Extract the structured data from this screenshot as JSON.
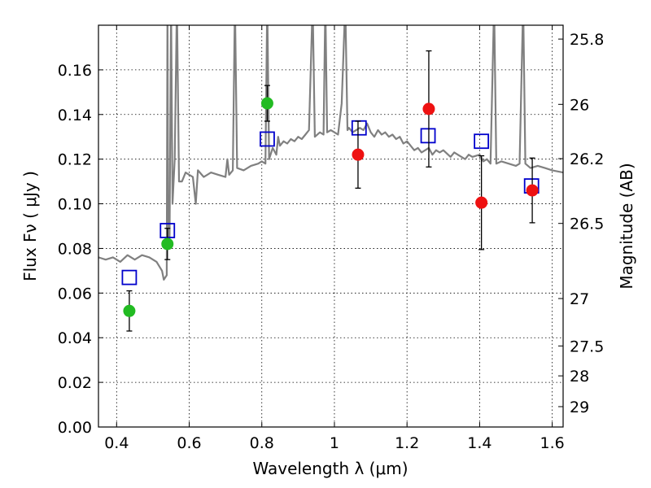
{
  "chart_data": {
    "type": "scatter",
    "xlabel": "Wavelength  λ (μm)",
    "ylabel_left": "Flux  Fν  ( μJy )",
    "ylabel_right": "Magnitude (AB)",
    "xlim": [
      0.35,
      1.63
    ],
    "ylim": [
      0.0,
      0.18
    ],
    "grid": true,
    "x_ticks": [
      {
        "value": 0.4,
        "label": "0.4"
      },
      {
        "value": 0.6,
        "label": "0.6"
      },
      {
        "value": 0.8,
        "label": "0.8"
      },
      {
        "value": 1.0,
        "label": "1"
      },
      {
        "value": 1.2,
        "label": "1.2"
      },
      {
        "value": 1.4,
        "label": "1.4"
      },
      {
        "value": 1.6,
        "label": "1.6"
      }
    ],
    "y_ticks": [
      {
        "value": 0.0,
        "label": "0.00"
      },
      {
        "value": 0.02,
        "label": "0.02"
      },
      {
        "value": 0.04,
        "label": "0.04"
      },
      {
        "value": 0.06,
        "label": "0.06"
      },
      {
        "value": 0.08,
        "label": "0.08"
      },
      {
        "value": 0.1,
        "label": "0.10"
      },
      {
        "value": 0.12,
        "label": "0.12"
      },
      {
        "value": 0.14,
        "label": "0.14"
      },
      {
        "value": 0.16,
        "label": "0.16"
      }
    ],
    "right_ticks": [
      {
        "mag": 25.8,
        "label": "25.8"
      },
      {
        "mag": 26.0,
        "label": "26"
      },
      {
        "mag": 26.2,
        "label": "26.2"
      },
      {
        "mag": 26.5,
        "label": "26.5"
      },
      {
        "mag": 27.0,
        "label": "27"
      },
      {
        "mag": 27.5,
        "label": "27.5"
      },
      {
        "mag": 28.0,
        "label": "28"
      },
      {
        "mag": 29.0,
        "label": "29"
      }
    ],
    "series": [
      {
        "kind": "observed-optical",
        "color": "#22bb22",
        "marker": "circle",
        "points": [
          {
            "x": 0.435,
            "y": 0.052,
            "err": 0.009
          },
          {
            "x": 0.54,
            "y": 0.082,
            "err": 0.007
          },
          {
            "x": 0.815,
            "y": 0.145,
            "err": 0.008
          }
        ]
      },
      {
        "kind": "observed-nir",
        "color": "#ee1111",
        "marker": "circle",
        "points": [
          {
            "x": 1.065,
            "y": 0.122,
            "err": 0.015
          },
          {
            "x": 1.26,
            "y": 0.1425,
            "err": 0.026
          },
          {
            "x": 1.405,
            "y": 0.1005,
            "err": 0.021
          },
          {
            "x": 1.545,
            "y": 0.106,
            "err": 0.0145
          }
        ]
      },
      {
        "kind": "model-bandpass",
        "color": "#0000cc",
        "marker": "square-open",
        "points": [
          {
            "x": 0.435,
            "y": 0.067
          },
          {
            "x": 0.54,
            "y": 0.088
          },
          {
            "x": 0.815,
            "y": 0.129
          },
          {
            "x": 1.068,
            "y": 0.134
          },
          {
            "x": 1.258,
            "y": 0.1305
          },
          {
            "x": 1.405,
            "y": 0.128
          },
          {
            "x": 1.543,
            "y": 0.108
          }
        ]
      },
      {
        "kind": "model-spectrum",
        "color": "#808080",
        "marker": "line",
        "points": [
          [
            0.35,
            0.076
          ],
          [
            0.37,
            0.075
          ],
          [
            0.39,
            0.076
          ],
          [
            0.41,
            0.074
          ],
          [
            0.43,
            0.077
          ],
          [
            0.45,
            0.075
          ],
          [
            0.47,
            0.077
          ],
          [
            0.49,
            0.076
          ],
          [
            0.51,
            0.074
          ],
          [
            0.525,
            0.07
          ],
          [
            0.53,
            0.066
          ],
          [
            0.538,
            0.068
          ],
          [
            0.54,
            0.19
          ],
          [
            0.542,
            0.08
          ],
          [
            0.546,
            0.085
          ],
          [
            0.55,
            0.19
          ],
          [
            0.554,
            0.1
          ],
          [
            0.56,
            0.12
          ],
          [
            0.566,
            0.19
          ],
          [
            0.572,
            0.11
          ],
          [
            0.58,
            0.11
          ],
          [
            0.59,
            0.114
          ],
          [
            0.6,
            0.113
          ],
          [
            0.61,
            0.112
          ],
          [
            0.618,
            0.1
          ],
          [
            0.624,
            0.115
          ],
          [
            0.64,
            0.112
          ],
          [
            0.66,
            0.114
          ],
          [
            0.68,
            0.113
          ],
          [
            0.7,
            0.112
          ],
          [
            0.705,
            0.12
          ],
          [
            0.71,
            0.113
          ],
          [
            0.72,
            0.115
          ],
          [
            0.726,
            0.19
          ],
          [
            0.732,
            0.116
          ],
          [
            0.75,
            0.115
          ],
          [
            0.77,
            0.117
          ],
          [
            0.79,
            0.118
          ],
          [
            0.8,
            0.119
          ],
          [
            0.81,
            0.118
          ],
          [
            0.815,
            0.19
          ],
          [
            0.82,
            0.12
          ],
          [
            0.83,
            0.125
          ],
          [
            0.84,
            0.122
          ],
          [
            0.845,
            0.13
          ],
          [
            0.85,
            0.126
          ],
          [
            0.86,
            0.128
          ],
          [
            0.87,
            0.127
          ],
          [
            0.88,
            0.129
          ],
          [
            0.89,
            0.128
          ],
          [
            0.9,
            0.13
          ],
          [
            0.91,
            0.129
          ],
          [
            0.92,
            0.131
          ],
          [
            0.93,
            0.133
          ],
          [
            0.94,
            0.19
          ],
          [
            0.946,
            0.13
          ],
          [
            0.96,
            0.132
          ],
          [
            0.97,
            0.131
          ],
          [
            0.975,
            0.19
          ],
          [
            0.98,
            0.132
          ],
          [
            0.99,
            0.133
          ],
          [
            1.0,
            0.132
          ],
          [
            1.01,
            0.131
          ],
          [
            1.02,
            0.145
          ],
          [
            1.03,
            0.19
          ],
          [
            1.036,
            0.133
          ],
          [
            1.04,
            0.134
          ],
          [
            1.05,
            0.132
          ],
          [
            1.06,
            0.133
          ],
          [
            1.07,
            0.134
          ],
          [
            1.08,
            0.133
          ],
          [
            1.09,
            0.136
          ],
          [
            1.1,
            0.132
          ],
          [
            1.11,
            0.13
          ],
          [
            1.12,
            0.133
          ],
          [
            1.13,
            0.131
          ],
          [
            1.14,
            0.132
          ],
          [
            1.15,
            0.13
          ],
          [
            1.16,
            0.131
          ],
          [
            1.17,
            0.129
          ],
          [
            1.18,
            0.13
          ],
          [
            1.19,
            0.127
          ],
          [
            1.2,
            0.128
          ],
          [
            1.22,
            0.124
          ],
          [
            1.23,
            0.125
          ],
          [
            1.24,
            0.123
          ],
          [
            1.25,
            0.124
          ],
          [
            1.26,
            0.125
          ],
          [
            1.27,
            0.122
          ],
          [
            1.28,
            0.124
          ],
          [
            1.29,
            0.123
          ],
          [
            1.3,
            0.124
          ],
          [
            1.32,
            0.121
          ],
          [
            1.33,
            0.123
          ],
          [
            1.34,
            0.122
          ],
          [
            1.36,
            0.12
          ],
          [
            1.37,
            0.122
          ],
          [
            1.38,
            0.121
          ],
          [
            1.4,
            0.122
          ],
          [
            1.41,
            0.119
          ],
          [
            1.42,
            0.12
          ],
          [
            1.43,
            0.118
          ],
          [
            1.44,
            0.19
          ],
          [
            1.446,
            0.118
          ],
          [
            1.46,
            0.119
          ],
          [
            1.48,
            0.118
          ],
          [
            1.5,
            0.117
          ],
          [
            1.51,
            0.118
          ],
          [
            1.52,
            0.19
          ],
          [
            1.526,
            0.118
          ],
          [
            1.54,
            0.116
          ],
          [
            1.56,
            0.117
          ],
          [
            1.58,
            0.116
          ],
          [
            1.6,
            0.115
          ],
          [
            1.63,
            0.114
          ]
        ]
      }
    ]
  }
}
